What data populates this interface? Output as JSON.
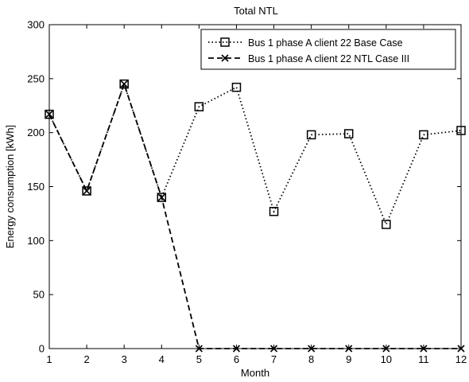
{
  "chart_data": {
    "type": "line",
    "title": "Total NTL",
    "xlabel": "Month",
    "ylabel": "Energy consumption [kWh]",
    "xlim": [
      1,
      12
    ],
    "ylim": [
      0,
      300
    ],
    "x": [
      1,
      2,
      3,
      4,
      5,
      6,
      7,
      8,
      9,
      10,
      11,
      12
    ],
    "xticks": [
      "1",
      "2",
      "3",
      "4",
      "5",
      "6",
      "7",
      "8",
      "9",
      "10",
      "11",
      "12"
    ],
    "yticks": [
      "0",
      "50",
      "100",
      "150",
      "200",
      "250",
      "300"
    ],
    "grid": false,
    "legend_position": "top-right",
    "series": [
      {
        "name": "Bus 1 phase A client 22 Base Case",
        "values": [
          217,
          146,
          245,
          140,
          224,
          242,
          127,
          198,
          199,
          115,
          198,
          202
        ],
        "line_style": "dotted",
        "marker": "square",
        "color": "#000000"
      },
      {
        "name": "Bus 1 phase A client 22 NTL Case III",
        "values": [
          217,
          146,
          245,
          140,
          0,
          0,
          0,
          0,
          0,
          0,
          0,
          0
        ],
        "line_style": "dashed",
        "marker": "x",
        "color": "#000000"
      }
    ]
  }
}
